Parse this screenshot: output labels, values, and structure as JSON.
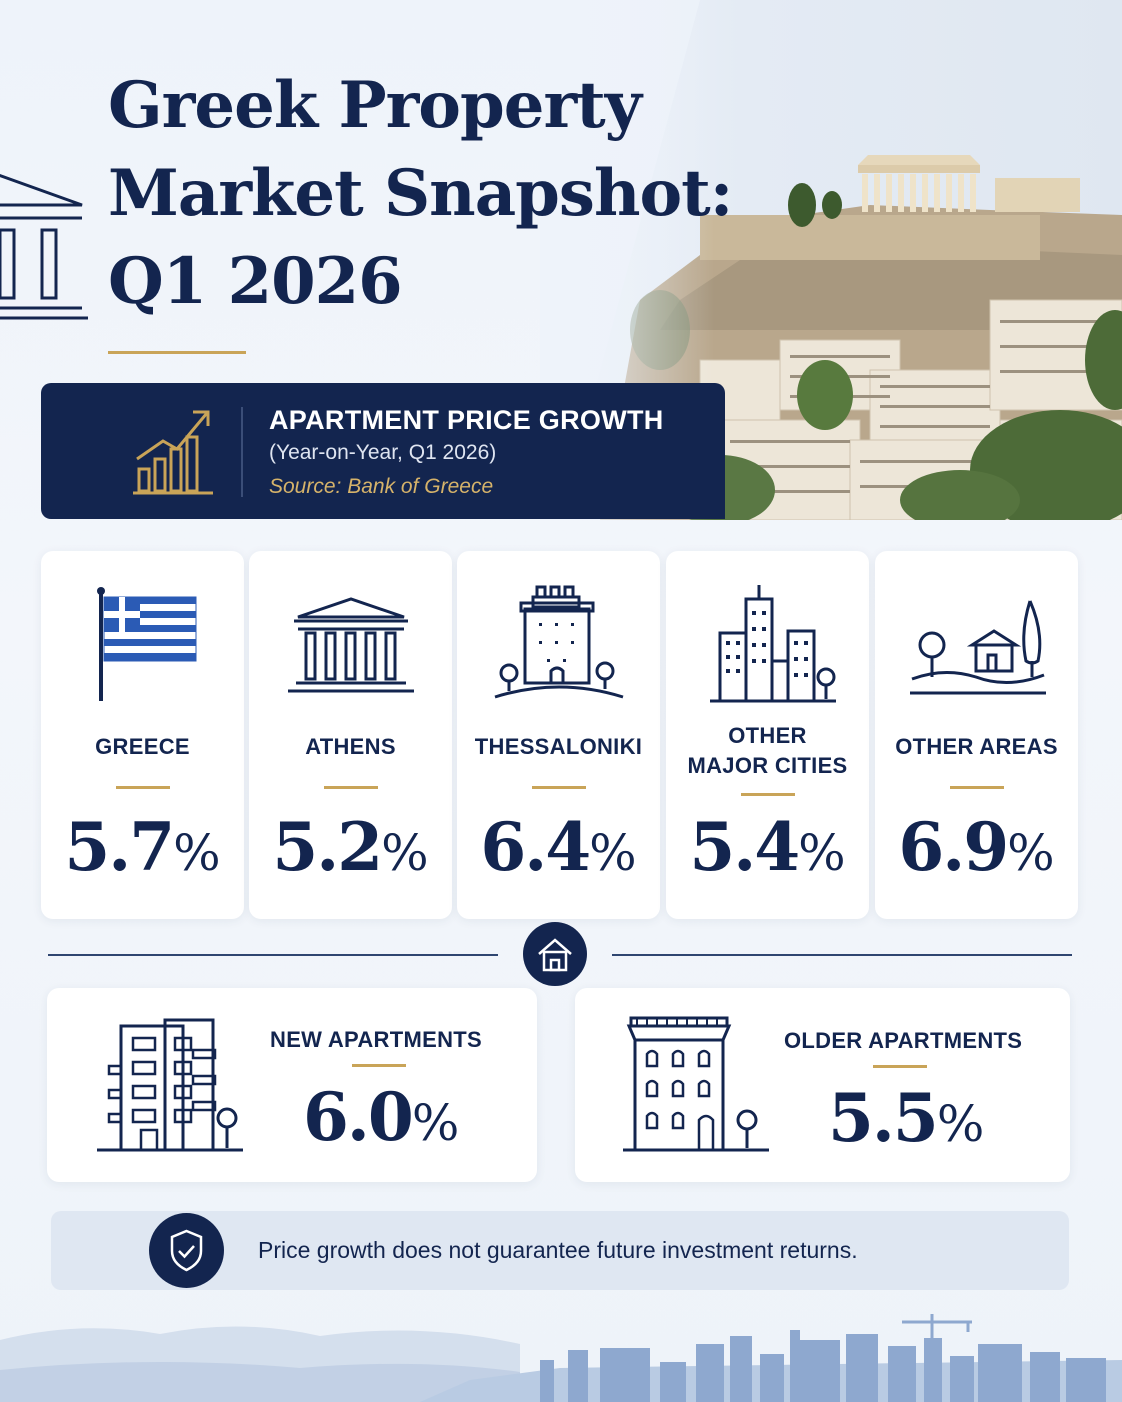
{
  "header": {
    "title_lines": [
      "Greek Property",
      "Market Snapshot:",
      "Q1 2026"
    ]
  },
  "banner": {
    "title": "APARTMENT PRICE GROWTH",
    "subtitle": "(Year-on-Year, Q1 2026)",
    "source": "Source: Bank of Greece",
    "icon": "growth-chart-icon"
  },
  "regions": [
    {
      "label_lines": [
        "GREECE"
      ],
      "value": "5.7",
      "unit": "%",
      "icon": "greek-flag-icon"
    },
    {
      "label_lines": [
        "ATHENS"
      ],
      "value": "5.2",
      "unit": "%",
      "icon": "temple-icon"
    },
    {
      "label_lines": [
        "THESSALONIKI"
      ],
      "value": "6.4",
      "unit": "%",
      "icon": "white-tower-icon"
    },
    {
      "label_lines": [
        "OTHER",
        "MAJOR CITIES"
      ],
      "value": "5.4",
      "unit": "%",
      "icon": "city-buildings-icon"
    },
    {
      "label_lines": [
        "OTHER AREAS"
      ],
      "value": "6.9",
      "unit": "%",
      "icon": "countryside-house-icon"
    }
  ],
  "types": [
    {
      "label": "NEW APARTMENTS",
      "value": "6.0",
      "unit": "%",
      "icon": "modern-apartment-icon"
    },
    {
      "label": "OLDER APARTMENTS",
      "value": "5.5",
      "unit": "%",
      "icon": "classic-apartment-icon"
    }
  ],
  "disclaimer": {
    "text": "Price growth does not guarantee future investment returns.",
    "icon": "shield-check-icon"
  },
  "colors": {
    "navy": "#13254f",
    "gold": "#c9a458",
    "flag_blue": "#2b5bb5",
    "background": "#eef3fa"
  }
}
